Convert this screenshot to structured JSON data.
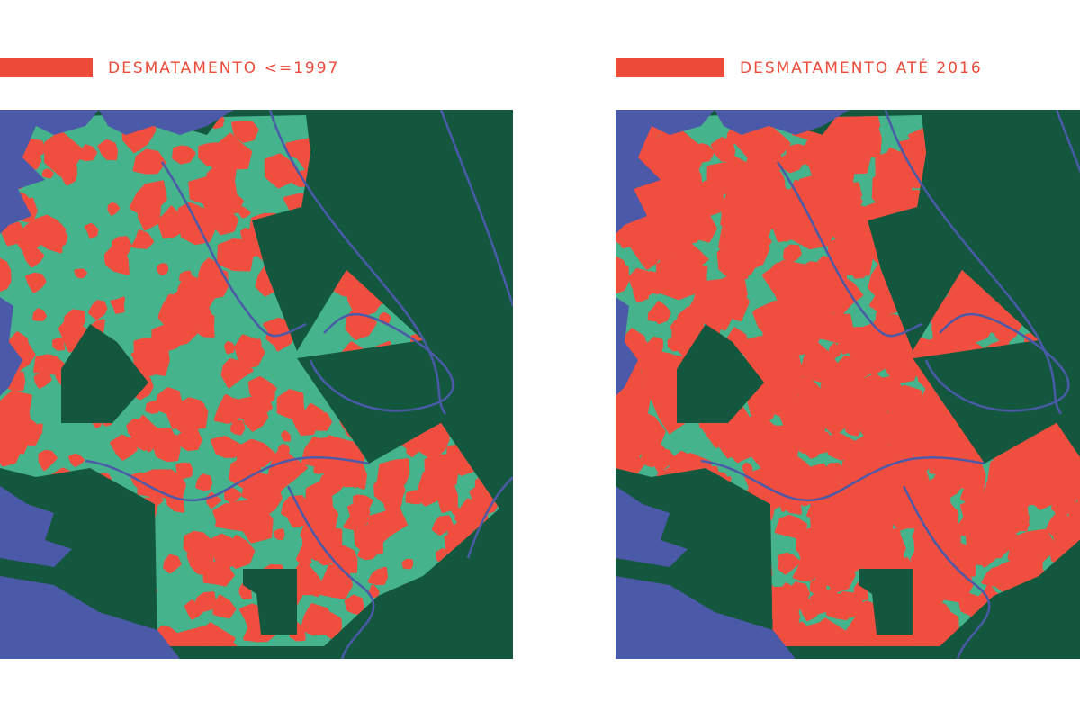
{
  "panels": [
    {
      "legend": "DESMATAMENTO <=1997"
    },
    {
      "legend": "DESMATAMENTO ATÉ 2016"
    }
  ]
}
